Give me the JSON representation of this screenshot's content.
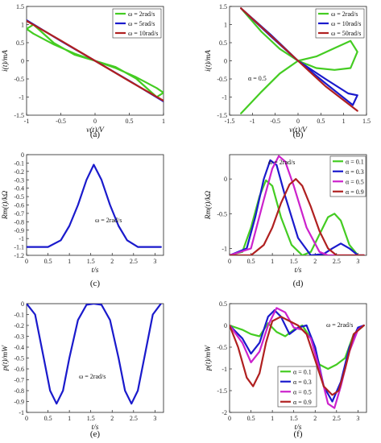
{
  "chart_data": [
    {
      "panel": "(a)",
      "type": "line",
      "xlabel": "v(t)/V",
      "ylabel": "i(t)/mA",
      "xlim": [
        -1,
        1
      ],
      "ylim": [
        -1.5,
        1.5
      ],
      "xticks": [
        "-1",
        "-0.5",
        "0",
        "0.5",
        "1"
      ],
      "yticks": [
        "-1.5",
        "-1",
        "-0.5",
        "0",
        "0.5",
        "1",
        "1.5"
      ],
      "grid": false,
      "legend": "top-right",
      "annotation": "",
      "series": [
        {
          "name": "ω = 2rad/s",
          "color": "#44cc22",
          "x": [
            -0.9,
            -0.6,
            -0.3,
            0,
            0.3,
            0.6,
            0.9,
            1.0,
            0.9,
            0.6,
            0.3,
            0,
            -0.3,
            -0.6,
            -0.9,
            -1.0,
            -0.9
          ],
          "y": [
            1.0,
            0.49,
            0.17,
            0,
            -0.17,
            -0.49,
            -1.0,
            -0.88,
            -0.75,
            -0.45,
            -0.2,
            0,
            0.2,
            0.45,
            0.75,
            0.88,
            1.0
          ]
        },
        {
          "name": "ω = 5rad/s",
          "color": "#1a1acc",
          "x": [
            -1,
            -0.5,
            0,
            0.5,
            1
          ],
          "y": [
            1.12,
            0.55,
            0,
            -0.55,
            -1.12
          ]
        },
        {
          "name": "ω = 10rad/s",
          "color": "#b02020",
          "x": [
            -1,
            -0.5,
            0,
            0.5,
            1
          ],
          "y": [
            1.1,
            0.56,
            0,
            -0.56,
            -1.1
          ]
        }
      ]
    },
    {
      "panel": "(b)",
      "type": "line",
      "xlabel": "v(t)/V",
      "ylabel": "i(t)/mA",
      "xlim": [
        -1.5,
        1.5
      ],
      "ylim": [
        -1.5,
        1.5
      ],
      "xticks": [
        "-1.5",
        "-1",
        "-0.5",
        "0",
        "0.5",
        "1",
        "1.5"
      ],
      "yticks": [
        "-1.5",
        "-1",
        "-0.5",
        "0",
        "0.5",
        "1",
        "1.5"
      ],
      "grid": false,
      "legend": "top-right",
      "annotation": "α = 0.5",
      "series": [
        {
          "name": "ω = 2rad/s",
          "color": "#44cc22",
          "x": [
            -1.25,
            -0.8,
            -0.4,
            0,
            0.4,
            0.8,
            1.15,
            1.3,
            1.15,
            0.8,
            0.4,
            0,
            -0.4,
            -0.8,
            -1.25
          ],
          "y": [
            1.45,
            0.8,
            0.33,
            0,
            -0.2,
            -0.25,
            -0.2,
            0.25,
            0.55,
            0.35,
            0.12,
            0,
            -0.35,
            -0.85,
            -1.45
          ]
        },
        {
          "name": "ω = 10rad/s",
          "color": "#1a1acc",
          "x": [
            -1.25,
            -0.6,
            0,
            0.6,
            1.2,
            1.3,
            1.1,
            0.6,
            0,
            -0.6,
            -1.25
          ],
          "y": [
            1.45,
            0.72,
            0,
            -0.62,
            -1.22,
            -0.95,
            -0.9,
            -0.5,
            0,
            0.68,
            1.45
          ]
        },
        {
          "name": "ω = 50rad/s",
          "color": "#b02020",
          "x": [
            -1.25,
            -0.6,
            0,
            0.6,
            1.3
          ],
          "y": [
            1.45,
            0.7,
            0,
            -0.7,
            -1.38
          ]
        }
      ]
    },
    {
      "panel": "(c)",
      "type": "line",
      "xlabel": "t/s",
      "ylabel": "Rm(t)/kΩ",
      "xlim": [
        0,
        3.2
      ],
      "ylim": [
        -1.2,
        0
      ],
      "xticks": [
        "0",
        "0.5",
        "1",
        "1.5",
        "2",
        "2.5",
        "3"
      ],
      "yticks": [
        "-1.2",
        "-1.1",
        "-1",
        "-0.9",
        "-0.8",
        "-0.7",
        "-0.6",
        "-0.5",
        "-0.4",
        "-0.3",
        "-0.2",
        "-0.1",
        "0"
      ],
      "grid": false,
      "legend": "none",
      "annotation": "ω = 2rad/s",
      "series": [
        {
          "name": "",
          "color": "#1a1acc",
          "x": [
            0,
            0.5,
            0.8,
            1.0,
            1.2,
            1.4,
            1.57,
            1.75,
            1.95,
            2.15,
            2.35,
            2.6,
            3.14
          ],
          "y": [
            -1.1,
            -1.1,
            -1.02,
            -0.85,
            -0.6,
            -0.3,
            -0.12,
            -0.3,
            -0.6,
            -0.85,
            -1.02,
            -1.1,
            -1.1
          ]
        }
      ]
    },
    {
      "panel": "(d)",
      "type": "line",
      "xlabel": "t/s",
      "ylabel": "Rm(t)/kΩ",
      "xlim": [
        0,
        3.2
      ],
      "ylim": [
        -1.1,
        0.35
      ],
      "xticks": [
        "0",
        "0.5",
        "1",
        "1.5",
        "2",
        "2.5",
        "3"
      ],
      "yticks": [
        "-1",
        "-0.5",
        "0"
      ],
      "grid": false,
      "legend": "top-right",
      "annotation": "ω = 2rad/s",
      "series": [
        {
          "name": "α = 0.1",
          "color": "#44cc22",
          "x": [
            0,
            0.3,
            0.5,
            0.7,
            0.85,
            1.0,
            1.2,
            1.45,
            1.7,
            1.9,
            2.1,
            2.3,
            2.45,
            2.6,
            2.8,
            3.0,
            3.14
          ],
          "y": [
            -1.1,
            -1.05,
            -0.7,
            -0.25,
            -0.02,
            -0.1,
            -0.55,
            -0.95,
            -1.1,
            -1.05,
            -0.8,
            -0.55,
            -0.5,
            -0.6,
            -0.95,
            -1.1,
            -1.1
          ]
        },
        {
          "name": "α = 0.3",
          "color": "#1a1acc",
          "x": [
            0,
            0.4,
            0.6,
            0.8,
            0.95,
            1.1,
            1.3,
            1.6,
            1.9,
            2.2,
            2.4,
            2.6,
            2.8,
            3.0,
            3.14
          ],
          "y": [
            -1.1,
            -1.0,
            -0.55,
            0.0,
            0.27,
            0.2,
            -0.25,
            -0.85,
            -1.1,
            -1.08,
            -1.0,
            -0.93,
            -1.0,
            -1.1,
            -1.1
          ]
        },
        {
          "name": "α = 0.5",
          "color": "#cc22cc",
          "x": [
            0,
            0.5,
            0.8,
            1.0,
            1.15,
            1.3,
            1.5,
            1.8,
            2.1,
            2.3,
            2.6,
            3.14
          ],
          "y": [
            -1.1,
            -1.0,
            -0.3,
            0.15,
            0.33,
            0.25,
            -0.1,
            -0.7,
            -1.05,
            -1.1,
            -1.1,
            -1.1
          ]
        },
        {
          "name": "α = 0.9",
          "color": "#b02020",
          "x": [
            0,
            0.5,
            0.8,
            1.0,
            1.2,
            1.4,
            1.55,
            1.7,
            1.9,
            2.1,
            2.3,
            2.5,
            2.8,
            3.14
          ],
          "y": [
            -1.1,
            -1.1,
            -0.95,
            -0.7,
            -0.35,
            -0.08,
            0.0,
            -0.1,
            -0.4,
            -0.75,
            -1.0,
            -1.1,
            -1.1,
            -1.1
          ]
        }
      ]
    },
    {
      "panel": "(e)",
      "type": "line",
      "xlabel": "t/s",
      "ylabel": "p(t)/mW",
      "xlim": [
        0,
        3.2
      ],
      "ylim": [
        -1,
        0
      ],
      "xticks": [
        "0",
        "0.5",
        "1",
        "1.5",
        "2",
        "2.5",
        "3"
      ],
      "yticks": [
        "-1",
        "-0.9",
        "-0.8",
        "-0.7",
        "-0.6",
        "-0.5",
        "-0.4",
        "-0.3",
        "-0.2",
        "-0.1",
        "0"
      ],
      "grid": false,
      "legend": "none",
      "annotation": "ω = 2rad/s",
      "series": [
        {
          "name": "",
          "color": "#1a1acc",
          "x": [
            0,
            0.2,
            0.4,
            0.55,
            0.7,
            0.85,
            1.0,
            1.2,
            1.4,
            1.57,
            1.75,
            1.95,
            2.15,
            2.3,
            2.45,
            2.6,
            2.75,
            2.95,
            3.14
          ],
          "y": [
            0,
            -0.1,
            -0.5,
            -0.8,
            -0.92,
            -0.8,
            -0.5,
            -0.15,
            -0.01,
            0,
            -0.01,
            -0.15,
            -0.5,
            -0.8,
            -0.92,
            -0.8,
            -0.5,
            -0.1,
            0
          ]
        }
      ]
    },
    {
      "panel": "(f)",
      "type": "line",
      "xlabel": "t/s",
      "ylabel": "p(t)/mW",
      "xlim": [
        0,
        3.2
      ],
      "ylim": [
        -2,
        0.5
      ],
      "xticks": [
        "0",
        "0.5",
        "1",
        "1.5",
        "2",
        "2.5",
        "3"
      ],
      "yticks": [
        "-2",
        "-1.5",
        "-1",
        "-0.5",
        "0",
        "0.5"
      ],
      "grid": false,
      "legend": "bottom-left",
      "annotation": "ω = 2rad/s",
      "series": [
        {
          "name": "α = 0.1",
          "color": "#44cc22",
          "x": [
            0,
            0.3,
            0.5,
            0.7,
            0.9,
            1.1,
            1.3,
            1.5,
            1.7,
            1.9,
            2.1,
            2.3,
            2.5,
            2.7,
            2.9,
            3.14
          ],
          "y": [
            0,
            -0.1,
            -0.2,
            -0.25,
            0.05,
            -0.15,
            -0.25,
            -0.1,
            0.0,
            -0.3,
            -0.9,
            -1.0,
            -0.9,
            -0.75,
            -0.2,
            0
          ]
        },
        {
          "name": "α = 0.3",
          "color": "#1a1acc",
          "x": [
            0,
            0.3,
            0.5,
            0.7,
            0.9,
            1.05,
            1.2,
            1.4,
            1.6,
            1.8,
            2.0,
            2.2,
            2.4,
            2.6,
            2.8,
            3.0,
            3.14
          ],
          "y": [
            0,
            -0.3,
            -0.65,
            -0.4,
            0.2,
            0.35,
            0.2,
            -0.2,
            -0.05,
            0.0,
            -0.5,
            -1.4,
            -1.75,
            -1.3,
            -0.5,
            -0.05,
            0
          ]
        },
        {
          "name": "α = 0.5",
          "color": "#cc22cc",
          "x": [
            0,
            0.3,
            0.5,
            0.7,
            0.9,
            1.1,
            1.3,
            1.5,
            1.7,
            1.9,
            2.1,
            2.3,
            2.45,
            2.6,
            2.8,
            3.0,
            3.14
          ],
          "y": [
            0,
            -0.4,
            -0.85,
            -0.6,
            0.0,
            0.4,
            0.3,
            -0.05,
            -0.1,
            -0.3,
            -1.0,
            -1.8,
            -1.9,
            -1.4,
            -0.6,
            -0.1,
            0
          ]
        },
        {
          "name": "α = 0.9",
          "color": "#b02020",
          "x": [
            0,
            0.2,
            0.4,
            0.55,
            0.7,
            0.85,
            1.0,
            1.2,
            1.4,
            1.6,
            1.8,
            2.0,
            2.2,
            2.4,
            2.55,
            2.7,
            2.9,
            3.14
          ],
          "y": [
            0,
            -0.5,
            -1.2,
            -1.4,
            -1.1,
            -0.4,
            0.1,
            0.2,
            0.1,
            0.0,
            -0.2,
            -0.8,
            -1.4,
            -1.6,
            -1.5,
            -1.0,
            -0.2,
            0
          ]
        }
      ]
    }
  ]
}
